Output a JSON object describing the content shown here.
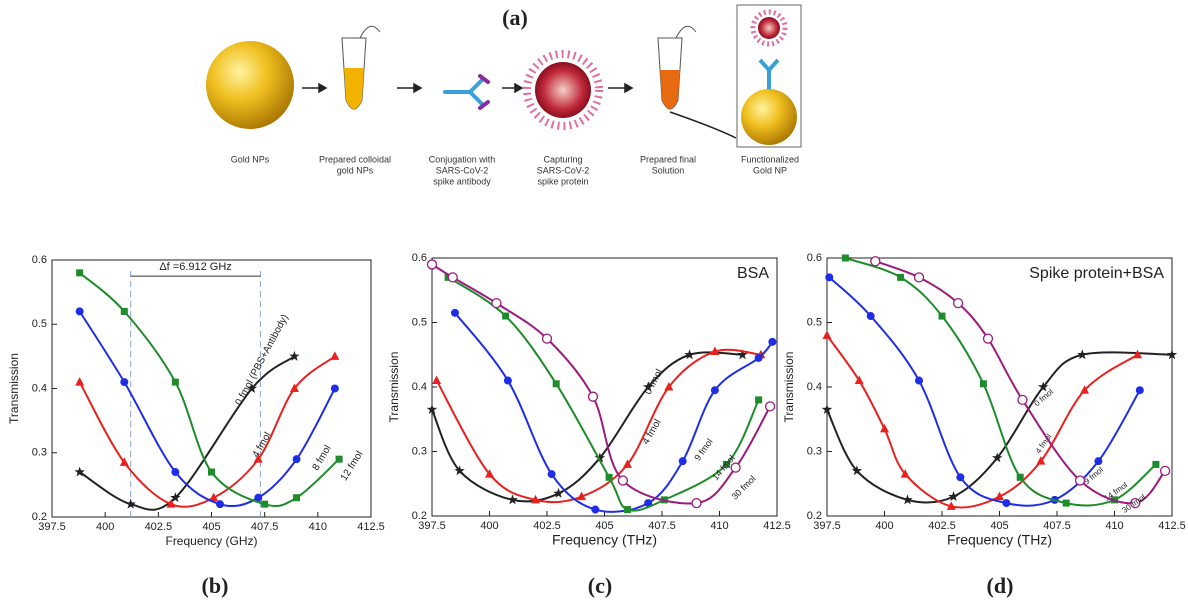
{
  "figure": {
    "label": "(a)",
    "steps": [
      [
        "Gold NPs"
      ],
      [
        "Prepared colloidal",
        "gold NPs"
      ],
      [
        "Conjugation with",
        "SARS-CoV-2",
        "spike antibody"
      ],
      [
        "Capturing",
        "SARS-CoV-2",
        "spike protein"
      ],
      [
        "Prepared final",
        "Solution"
      ],
      [
        "Functionalized",
        "Gold NP"
      ]
    ]
  },
  "chart_data": [
    {
      "type": "line",
      "label": "(b)",
      "xlabel": "Frequency (GHz)",
      "ylabel": "Transmission",
      "xlim": [
        397.5,
        412.5
      ],
      "xticks": [
        397.5,
        400,
        402.5,
        405,
        407.5,
        410,
        412.5
      ],
      "ylim": [
        0.2,
        0.6
      ],
      "yticks": [
        0.2,
        0.3,
        0.4,
        0.5,
        0.6
      ],
      "annotation": {
        "text": "Δf =6.912 GHz",
        "x": [
          401.2,
          407.3
        ],
        "y": 0.575
      },
      "series": [
        {
          "name": "0 fmol (PBS+Antibody)",
          "color": "#222222",
          "marker": "star",
          "x": [
            398.8,
            401.2,
            403.3,
            406.9,
            408.9
          ],
          "values": [
            0.27,
            0.22,
            0.23,
            0.4,
            0.45
          ]
        },
        {
          "name": "4 fmol",
          "color": "#e8211f",
          "marker": "triangle",
          "x": [
            398.8,
            400.9,
            403.1,
            405.1,
            407.2,
            408.9,
            410.8
          ],
          "values": [
            0.41,
            0.285,
            0.22,
            0.23,
            0.29,
            0.4,
            0.45
          ]
        },
        {
          "name": "8 fmol",
          "color": "#1f2ee6",
          "marker": "circle",
          "x": [
            398.8,
            400.9,
            403.3,
            405.4,
            407.2,
            409,
            410.8
          ],
          "values": [
            0.52,
            0.41,
            0.27,
            0.22,
            0.23,
            0.29,
            0.4
          ]
        },
        {
          "name": "12 fmol",
          "color": "#1e8c2a",
          "marker": "square",
          "x": [
            398.8,
            400.9,
            403.3,
            405,
            407.5,
            409,
            411
          ],
          "values": [
            0.58,
            0.52,
            0.41,
            0.27,
            0.22,
            0.23,
            0.29
          ]
        }
      ]
    },
    {
      "type": "line",
      "label": "(c)",
      "xlabel": "Frequency (THz)",
      "ylabel": "Transmission",
      "inset_text": "BSA",
      "xlim": [
        397.5,
        412.5
      ],
      "xticks": [
        397.5,
        400,
        402.5,
        405,
        407.5,
        410,
        412.5
      ],
      "ylim": [
        0.2,
        0.6
      ],
      "yticks": [
        0.2,
        0.3,
        0.4,
        0.5,
        0.6
      ],
      "series": [
        {
          "name": "0 fmol",
          "color": "#222222",
          "marker": "star",
          "x": [
            397.5,
            398.7,
            401,
            403,
            404.8,
            406.9,
            408.7,
            411
          ],
          "values": [
            0.365,
            0.27,
            0.225,
            0.235,
            0.29,
            0.4,
            0.45,
            0.45
          ]
        },
        {
          "name": "4 fmol",
          "color": "#e8211f",
          "marker": "triangle",
          "x": [
            397.7,
            400,
            402,
            404,
            406,
            407.8,
            409.8,
            411.8
          ],
          "values": [
            0.41,
            0.265,
            0.225,
            0.23,
            0.28,
            0.4,
            0.455,
            0.45
          ]
        },
        {
          "name": "9 fmol",
          "color": "#1f2ee6",
          "marker": "circle",
          "x": [
            398.5,
            400.8,
            402.7,
            404.6,
            406.9,
            408.4,
            409.8,
            411.7,
            412.3
          ],
          "values": [
            0.515,
            0.41,
            0.265,
            0.21,
            0.22,
            0.285,
            0.395,
            0.445,
            0.47
          ]
        },
        {
          "name": "14 fmol",
          "color": "#1e8c2a",
          "marker": "square",
          "x": [
            398.2,
            400.7,
            402.9,
            405.2,
            406,
            407.6,
            410.3,
            411.7
          ],
          "values": [
            0.57,
            0.51,
            0.405,
            0.26,
            0.21,
            0.225,
            0.28,
            0.38
          ]
        },
        {
          "name": "30 fmol",
          "color": "#9b1a7c",
          "marker": "open-circle",
          "x": [
            397.5,
            398.4,
            400.3,
            402.5,
            404.5,
            405.8,
            409,
            410.7,
            412.2
          ],
          "values": [
            0.59,
            0.57,
            0.53,
            0.475,
            0.385,
            0.255,
            0.22,
            0.275,
            0.37
          ]
        }
      ]
    },
    {
      "type": "line",
      "label": "(d)",
      "xlabel": "Frequency (THz)",
      "ylabel": "Transmission",
      "inset_text": "Spike protein+BSA",
      "xlim": [
        397.5,
        412.5
      ],
      "xticks": [
        397.5,
        400,
        402.5,
        405,
        407.5,
        410,
        412.5
      ],
      "ylim": [
        0.2,
        0.6
      ],
      "yticks": [
        0.2,
        0.3,
        0.4,
        0.5,
        0.6
      ],
      "series": [
        {
          "name": "0 fmol",
          "color": "#222222",
          "marker": "star",
          "x": [
            397.5,
            398.8,
            401,
            403,
            404.9,
            406.9,
            408.6,
            412.5
          ],
          "values": [
            0.365,
            0.27,
            0.225,
            0.23,
            0.29,
            0.4,
            0.45,
            0.45
          ]
        },
        {
          "name": "4 fmol",
          "color": "#e8211f",
          "marker": "triangle",
          "x": [
            397.5,
            398.9,
            400,
            400.9,
            402.9,
            405,
            406.8,
            408.7,
            411
          ],
          "values": [
            0.48,
            0.41,
            0.335,
            0.265,
            0.215,
            0.23,
            0.285,
            0.395,
            0.45
          ]
        },
        {
          "name": "9 fmol",
          "color": "#1f2ee6",
          "marker": "circle",
          "x": [
            397.6,
            399.4,
            401.5,
            403.3,
            405.3,
            407.4,
            409.3,
            411.1
          ],
          "values": [
            0.57,
            0.51,
            0.41,
            0.26,
            0.22,
            0.225,
            0.285,
            0.395
          ]
        },
        {
          "name": "14 fmol",
          "color": "#1e8c2a",
          "marker": "square",
          "x": [
            398.3,
            400.7,
            402.5,
            404.3,
            405.9,
            407.9,
            410,
            411.8
          ],
          "values": [
            0.6,
            0.57,
            0.51,
            0.405,
            0.26,
            0.22,
            0.225,
            0.28
          ]
        },
        {
          "name": "30 fmol",
          "color": "#9b1a7c",
          "marker": "open-circle",
          "x": [
            399.6,
            401.5,
            403.2,
            404.5,
            406,
            408.5,
            410.9,
            412.2
          ],
          "values": [
            0.595,
            0.57,
            0.53,
            0.475,
            0.38,
            0.255,
            0.22,
            0.27
          ]
        }
      ]
    }
  ]
}
